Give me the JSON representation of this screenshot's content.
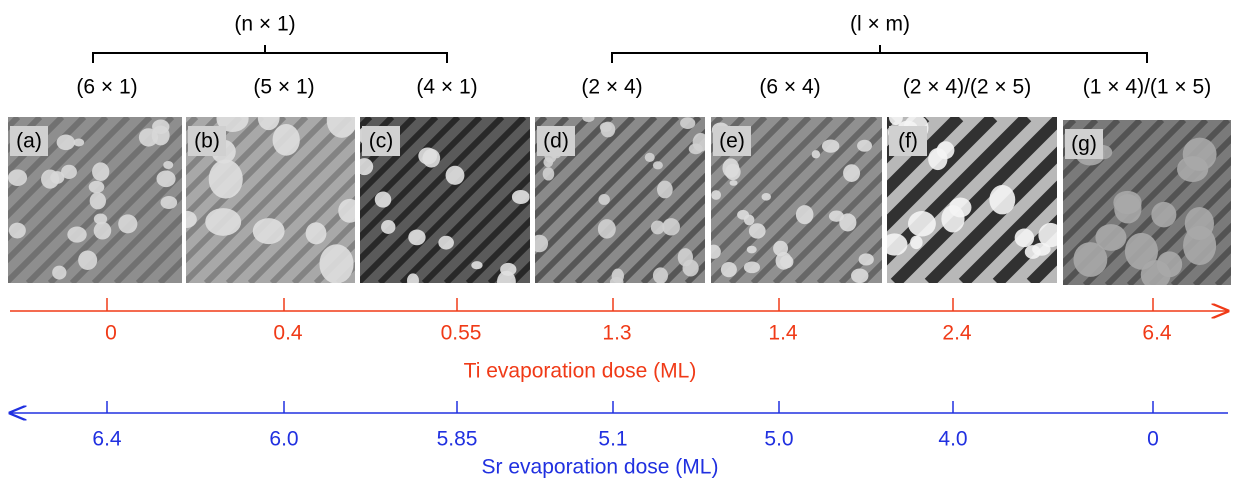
{
  "groups": [
    {
      "label": "(n × 1)"
    },
    {
      "label": "(l × m)"
    }
  ],
  "panels": [
    {
      "tag": "(a)",
      "reconstruction": "(6 × 1)",
      "ti_dose": "0",
      "sr_dose": "6.4"
    },
    {
      "tag": "(b)",
      "reconstruction": "(5 × 1)",
      "ti_dose": "0.4",
      "sr_dose": "6.0"
    },
    {
      "tag": "(c)",
      "reconstruction": "(4 × 1)",
      "ti_dose": "0.55",
      "sr_dose": "5.85"
    },
    {
      "tag": "(d)",
      "reconstruction": "(2 × 4)",
      "ti_dose": "1.3",
      "sr_dose": "5.1"
    },
    {
      "tag": "(e)",
      "reconstruction": "(6 × 4)",
      "ti_dose": "1.4",
      "sr_dose": "5.0"
    },
    {
      "tag": "(f)",
      "reconstruction": "(2 × 4)/(2 × 5)",
      "ti_dose": "2.4",
      "sr_dose": "4.0"
    },
    {
      "tag": "(g)",
      "reconstruction": "(1 × 4)/(1 × 5)",
      "ti_dose": "6.4",
      "sr_dose": "0"
    }
  ],
  "ti_axis_label": "Ti evaporation dose (ML)",
  "sr_axis_label": "Sr evaporation dose (ML)"
}
